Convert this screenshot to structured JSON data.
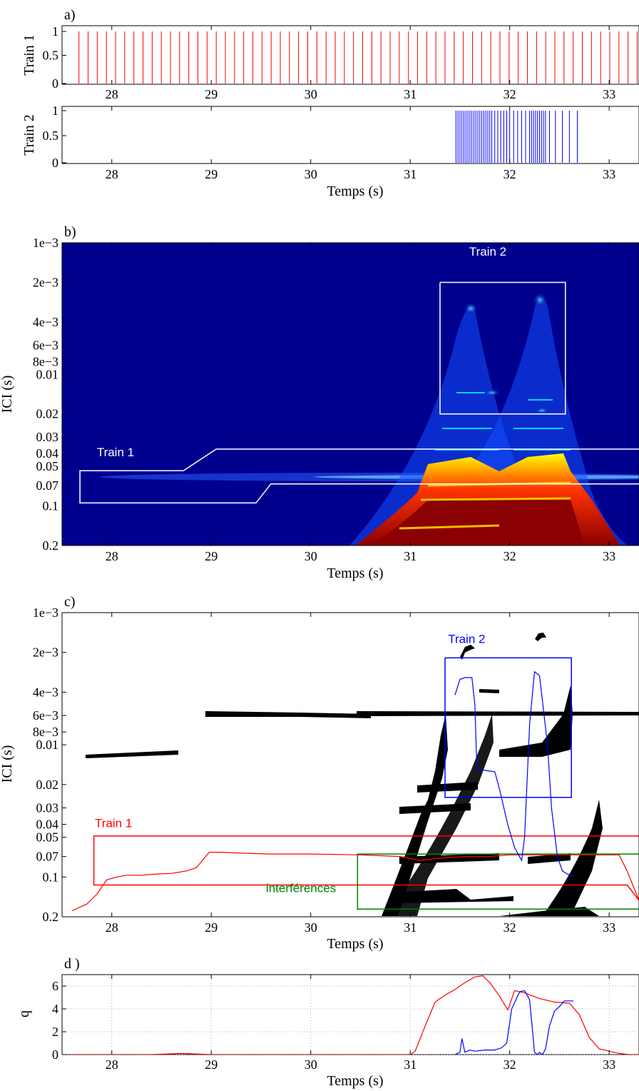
{
  "chart_data": [
    {
      "id": "a",
      "panel_label": "a)",
      "type": "spike-train",
      "xlim": [
        27.5,
        33.3
      ],
      "xticks": [
        "28",
        "29",
        "30",
        "31",
        "32",
        "33"
      ],
      "xlabel": "Temps (s)",
      "trains": [
        {
          "ylabel": "Train 1",
          "yticks": [
            "0",
            "0.5",
            "1"
          ],
          "ylim": [
            0,
            1
          ],
          "color": "#ff0000",
          "spikes": {
            "start": 27.67,
            "end": 33.3,
            "interval": 0.092
          }
        },
        {
          "ylabel": "Train 2",
          "yticks": [
            "0",
            "0.5",
            "1"
          ],
          "ylim": [
            0,
            1
          ],
          "color": "#0000ff",
          "spikes": [
            31.46,
            31.48,
            31.5,
            31.52,
            31.54,
            31.56,
            31.58,
            31.6,
            31.62,
            31.64,
            31.66,
            31.68,
            31.7,
            31.72,
            31.74,
            31.76,
            31.78,
            31.8,
            31.82,
            31.85,
            31.88,
            31.91,
            31.94,
            31.97,
            32.0,
            32.04,
            32.08,
            32.12,
            32.16,
            32.2,
            32.22,
            32.24,
            32.26,
            32.28,
            32.3,
            32.32,
            32.34,
            32.36,
            32.4,
            32.46,
            32.53,
            32.6,
            32.68
          ]
        }
      ]
    },
    {
      "id": "b",
      "panel_label": "b)",
      "type": "heatmap",
      "xlim": [
        27.5,
        33.3
      ],
      "xticks": [
        "28",
        "29",
        "30",
        "31",
        "32",
        "33"
      ],
      "xlabel": "Temps (s)",
      "ylabel": "ICI (s)",
      "yscale": "log",
      "ylim": [
        0.001,
        0.2
      ],
      "yticks": [
        {
          "v": 0.001,
          "label": "1e−3"
        },
        {
          "v": 0.002,
          "label": "2e−3"
        },
        {
          "v": 0.004,
          "label": "4e−3"
        },
        {
          "v": 0.006,
          "label": "6e−3"
        },
        {
          "v": 0.008,
          "label": "8e−3"
        },
        {
          "v": 0.01,
          "label": "0.01"
        },
        {
          "v": 0.02,
          "label": "0.02"
        },
        {
          "v": 0.03,
          "label": "0.03"
        },
        {
          "v": 0.04,
          "label": "0.04"
        },
        {
          "v": 0.05,
          "label": "0.05"
        },
        {
          "v": 0.07,
          "label": "0.07"
        },
        {
          "v": 0.1,
          "label": "0.1"
        },
        {
          "v": 0.2,
          "label": "0.2"
        }
      ],
      "colormap": "jet",
      "annotations": [
        {
          "text": "Train 2",
          "x": 31.78,
          "y": 0.00125,
          "color": "#ffffff"
        },
        {
          "text": "Train 1",
          "x": 27.85,
          "y": 0.042,
          "color": "#ffffff"
        }
      ],
      "regions": [
        {
          "name": "Train 2",
          "color": "#ffffff",
          "points": [
            [
              31.3,
              0.002
            ],
            [
              32.56,
              0.002
            ],
            [
              32.56,
              0.02
            ],
            [
              31.3,
              0.02
            ],
            [
              31.3,
              0.002
            ]
          ]
        },
        {
          "name": "Train 1",
          "color": "#ffffff",
          "points": [
            [
              33.3,
              0.037
            ],
            [
              29.05,
              0.037
            ],
            [
              28.72,
              0.054
            ],
            [
              27.68,
              0.054
            ],
            [
              27.68,
              0.095
            ],
            [
              29.45,
              0.095
            ],
            [
              29.6,
              0.068
            ],
            [
              33.3,
              0.068
            ]
          ]
        }
      ]
    },
    {
      "id": "c",
      "panel_label": "c)",
      "type": "scatter",
      "xlim": [
        27.5,
        33.3
      ],
      "xticks": [
        "28",
        "29",
        "30",
        "31",
        "32",
        "33"
      ],
      "xlabel": "Temps (s)",
      "ylabel": "ICI (s)",
      "yscale": "log",
      "ylim": [
        0.001,
        0.2
      ],
      "yticks": [
        {
          "v": 0.001,
          "label": "1e−3"
        },
        {
          "v": 0.002,
          "label": "2e−3"
        },
        {
          "v": 0.004,
          "label": "4e−3"
        },
        {
          "v": 0.006,
          "label": "6e−3"
        },
        {
          "v": 0.008,
          "label": "8e−3"
        },
        {
          "v": 0.01,
          "label": "0.01"
        },
        {
          "v": 0.02,
          "label": "0.02"
        },
        {
          "v": 0.03,
          "label": "0.03"
        },
        {
          "v": 0.04,
          "label": "0.04"
        },
        {
          "v": 0.05,
          "label": "0.05"
        },
        {
          "v": 0.07,
          "label": "0.07"
        },
        {
          "v": 0.1,
          "label": "0.1"
        },
        {
          "v": 0.2,
          "label": "0.2"
        }
      ],
      "annotations": [
        {
          "text": "Train 2",
          "x": 31.38,
          "y": 0.0017,
          "color": "#0000ff"
        },
        {
          "text": "Train 1",
          "x": 27.83,
          "y": 0.042,
          "color": "#ff0000"
        },
        {
          "text": "interférences",
          "x": 29.55,
          "y": 0.13,
          "color": "#008000"
        }
      ],
      "regions": [
        {
          "name": "Train 2",
          "color": "#0000ff",
          "points": [
            [
              31.35,
              0.0022
            ],
            [
              32.62,
              0.0022
            ],
            [
              32.62,
              0.025
            ],
            [
              31.35,
              0.025
            ],
            [
              31.35,
              0.0022
            ]
          ]
        },
        {
          "name": "Train 1",
          "color": "#ff0000",
          "points": [
            [
              33.3,
              0.049
            ],
            [
              27.82,
              0.049
            ],
            [
              27.82,
              0.115
            ],
            [
              33.18,
              0.115
            ],
            [
              33.3,
              0.15
            ]
          ]
        },
        {
          "name": "interférences",
          "color": "#008000",
          "points": [
            [
              33.3,
              0.067
            ],
            [
              30.47,
              0.067
            ],
            [
              30.47,
              0.175
            ],
            [
              33.3,
              0.175
            ]
          ]
        }
      ],
      "series": [
        {
          "name": "Train 1",
          "color": "#ff0000",
          "points": [
            [
              27.6,
              0.18
            ],
            [
              27.75,
              0.16
            ],
            [
              27.85,
              0.135
            ],
            [
              27.95,
              0.105
            ],
            [
              28.05,
              0.1
            ],
            [
              28.15,
              0.097
            ],
            [
              28.3,
              0.097
            ],
            [
              28.45,
              0.095
            ],
            [
              28.6,
              0.094
            ],
            [
              28.75,
              0.09
            ],
            [
              28.85,
              0.085
            ],
            [
              28.98,
              0.065
            ],
            [
              29.1,
              0.065
            ],
            [
              29.3,
              0.066
            ],
            [
              29.6,
              0.067
            ],
            [
              30.0,
              0.067
            ],
            [
              30.5,
              0.068
            ],
            [
              30.9,
              0.07
            ],
            [
              31.1,
              0.075
            ],
            [
              31.3,
              0.072
            ],
            [
              31.55,
              0.07
            ],
            [
              31.8,
              0.07
            ],
            [
              32.0,
              0.068
            ],
            [
              32.3,
              0.068
            ],
            [
              32.6,
              0.068
            ],
            [
              32.9,
              0.068
            ],
            [
              33.1,
              0.068
            ],
            [
              33.18,
              0.09
            ],
            [
              33.3,
              0.15
            ]
          ]
        },
        {
          "name": "Train 2",
          "color": "#0000ff",
          "points": [
            [
              31.45,
              0.0042
            ],
            [
              31.5,
              0.0032
            ],
            [
              31.55,
              0.0031
            ],
            [
              31.62,
              0.0031
            ],
            [
              31.65,
              0.005
            ],
            [
              31.67,
              0.015
            ],
            [
              31.72,
              0.0155
            ],
            [
              31.8,
              0.0158
            ],
            [
              31.85,
              0.016
            ],
            [
              31.9,
              0.022
            ],
            [
              31.98,
              0.04
            ],
            [
              32.05,
              0.06
            ],
            [
              32.12,
              0.075
            ],
            [
              32.15,
              0.05
            ],
            [
              32.2,
              0.007
            ],
            [
              32.25,
              0.0028
            ],
            [
              32.3,
              0.003
            ],
            [
              32.38,
              0.01
            ],
            [
              32.42,
              0.03
            ],
            [
              32.48,
              0.07
            ],
            [
              32.53,
              0.09
            ],
            [
              32.58,
              0.095
            ],
            [
              32.64,
              0.098
            ]
          ]
        }
      ]
    },
    {
      "id": "d",
      "panel_label": "d )",
      "type": "line",
      "xlim": [
        27.5,
        33.3
      ],
      "xticks": [
        "28",
        "29",
        "30",
        "31",
        "32",
        "33"
      ],
      "xlabel": "Temps (s)",
      "ylabel": "q",
      "ylim": [
        0,
        7
      ],
      "yticks": [
        "0",
        "2",
        "4",
        "6"
      ],
      "grid": true,
      "series": [
        {
          "name": "Train 1",
          "color": "#ff0000",
          "x": [
            27.6,
            28.4,
            28.7,
            29.0,
            29.5,
            30.0,
            30.5,
            31.0,
            31.05,
            31.15,
            31.25,
            31.35,
            31.45,
            31.55,
            31.65,
            31.73,
            31.8,
            31.9,
            31.98,
            32.05,
            32.15,
            32.3,
            32.45,
            32.6,
            32.7,
            32.8,
            32.9,
            33.0,
            33.1,
            33.2,
            33.3
          ],
          "y": [
            0,
            0,
            0.1,
            0,
            0,
            0,
            0,
            0,
            0.3,
            2.5,
            4.6,
            5.2,
            5.7,
            6.3,
            6.8,
            6.9,
            6.3,
            5.1,
            3.9,
            5.6,
            5.4,
            4.9,
            4.6,
            4.5,
            3.5,
            1.5,
            0.5,
            0.3,
            0.1,
            0,
            0
          ]
        },
        {
          "name": "Train 2",
          "color": "#0000ff",
          "x": [
            31.45,
            31.5,
            31.52,
            31.55,
            31.6,
            31.65,
            31.75,
            31.85,
            31.92,
            31.97,
            32.02,
            32.1,
            32.15,
            32.2,
            32.25,
            32.28,
            32.3,
            32.33,
            32.36,
            32.4,
            32.45,
            32.5,
            32.55,
            32.64
          ],
          "y": [
            0,
            0.2,
            1.4,
            0.2,
            0.4,
            0.3,
            0.4,
            0.4,
            0.6,
            1.0,
            4.0,
            5.5,
            5.6,
            4.8,
            0.2,
            0,
            0.2,
            0,
            0.5,
            2.5,
            3.8,
            4.2,
            4.7,
            4.7
          ]
        }
      ]
    }
  ]
}
